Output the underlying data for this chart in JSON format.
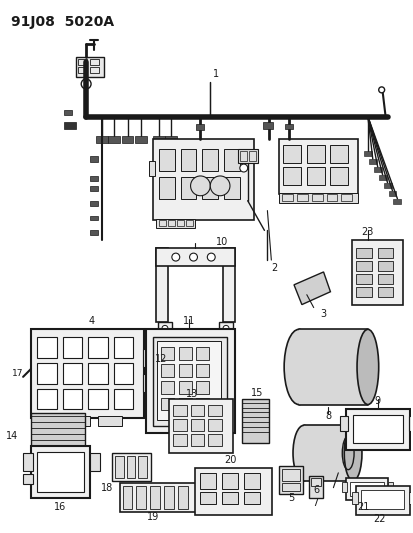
{
  "title": "91J08  5020A",
  "bg_color": "#ffffff",
  "line_color": "#1a1a1a",
  "fig_w": 4.14,
  "fig_h": 5.33,
  "dpi": 100
}
